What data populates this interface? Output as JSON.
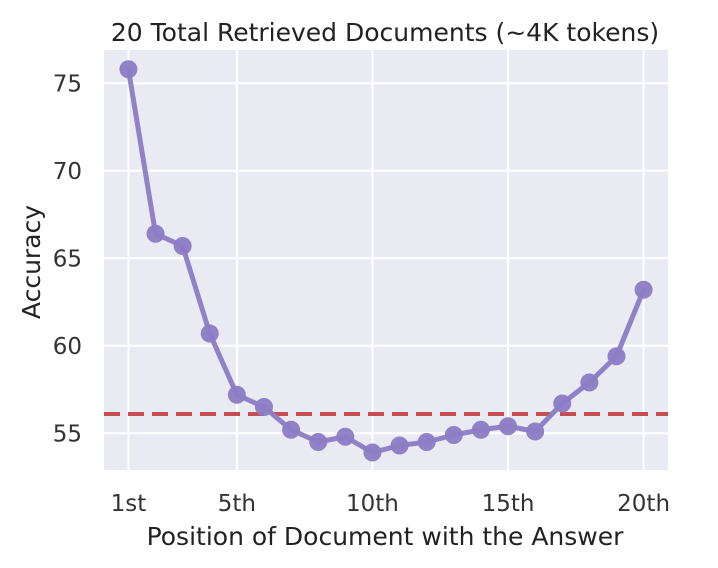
{
  "chart_data": {
    "type": "line",
    "title": "20 Total Retrieved Documents (~4K tokens)",
    "xlabel": "Position of Document with the Answer",
    "ylabel": "Accuracy",
    "x": [
      1,
      2,
      3,
      4,
      5,
      6,
      7,
      8,
      9,
      10,
      11,
      12,
      13,
      14,
      15,
      16,
      17,
      18,
      19,
      20
    ],
    "xticks": [
      1,
      5,
      10,
      15,
      20
    ],
    "xtick_labels": [
      "1st",
      "5th",
      "10th",
      "15th",
      "20th"
    ],
    "yticks": [
      55,
      60,
      65,
      70,
      75
    ],
    "ytick_labels": [
      "55",
      "60",
      "65",
      "70",
      "75"
    ],
    "xlim": [
      0.1,
      20.9
    ],
    "ylim": [
      52.9,
      76.9
    ],
    "grid": true,
    "background_color": "#eaeaf2",
    "series": [
      {
        "color": "#8c7cc4",
        "values": [
          75.8,
          66.4,
          65.7,
          60.7,
          57.2,
          56.5,
          55.2,
          54.5,
          54.8,
          53.9,
          54.3,
          54.5,
          54.9,
          55.2,
          55.4,
          55.1,
          56.7,
          57.9,
          59.4,
          63.2
        ]
      }
    ],
    "reference_line": {
      "y": 56.1,
      "style": "dashed",
      "color": "#c44e52"
    }
  }
}
